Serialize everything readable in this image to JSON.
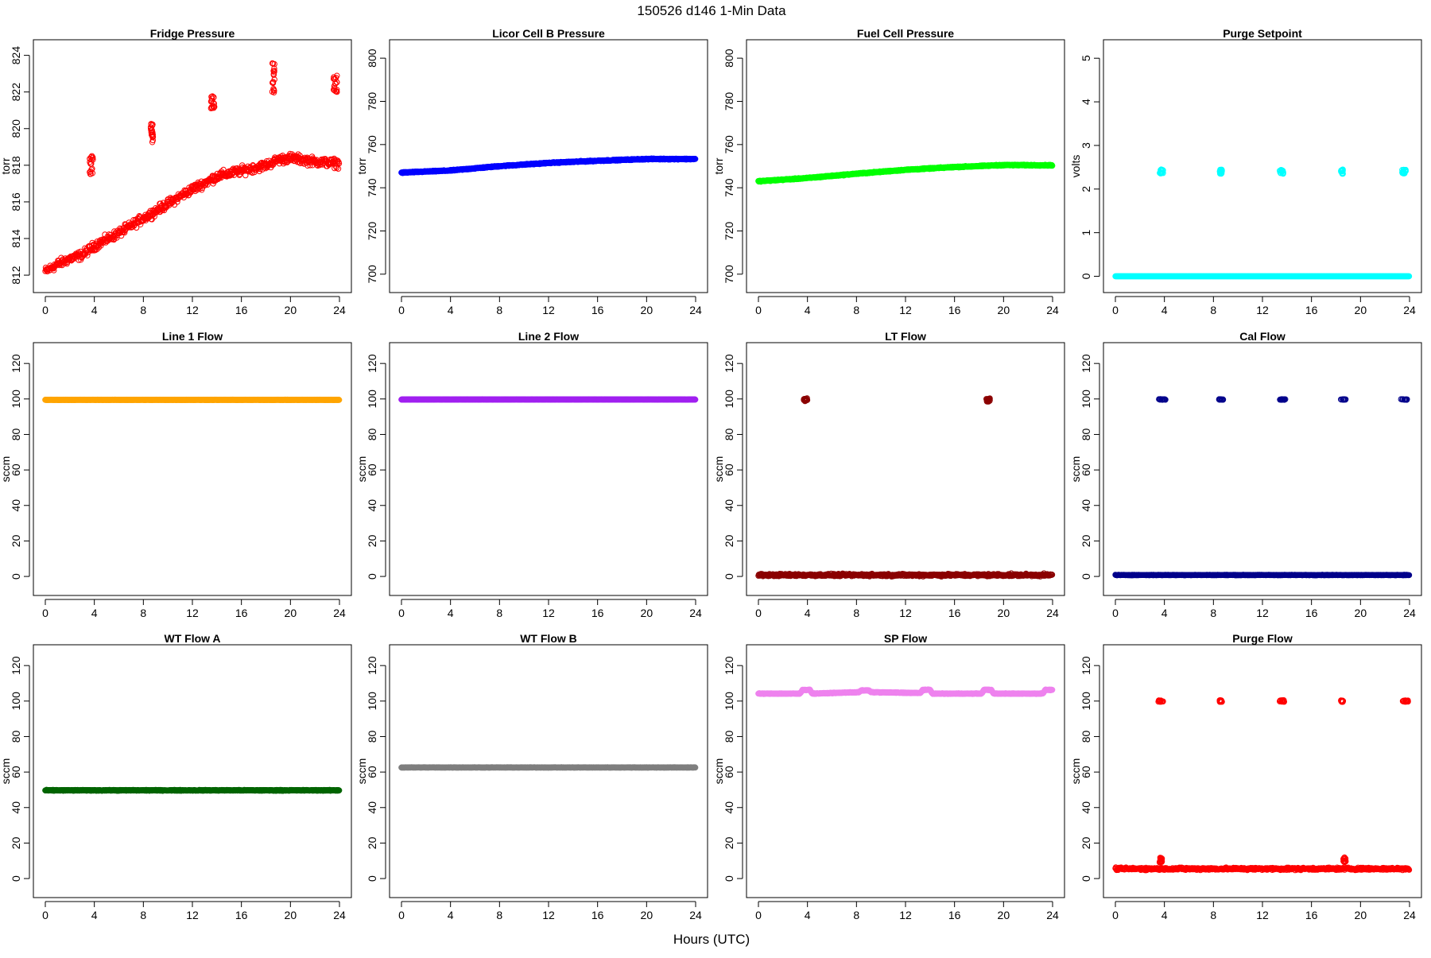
{
  "page": {
    "title": "150526   d146   1-Min Data",
    "xlabel": "Hours (UTC)"
  },
  "chart_data": [
    {
      "type": "scatter",
      "title": "Fridge Pressure",
      "ylabel": "torr",
      "xlim": [
        0,
        24
      ],
      "ylim": [
        811.7,
        824.2
      ],
      "xticks": [
        0,
        4,
        8,
        12,
        16,
        20,
        24
      ],
      "yticks": [
        812,
        814,
        816,
        818,
        820,
        822,
        824
      ],
      "color": "#ff0000",
      "marker": "open-circle",
      "noise": 0.35,
      "series": [
        {
          "x": [
            0,
            1,
            2,
            3,
            4,
            6,
            8,
            10,
            12,
            13.5,
            14,
            16,
            18,
            19,
            20,
            22,
            24
          ],
          "y": [
            812.2,
            812.6,
            812.9,
            813.1,
            813.6,
            814.3,
            815.1,
            815.9,
            816.7,
            817.2,
            817.4,
            817.7,
            818.0,
            818.3,
            818.4,
            818.2,
            818.1
          ]
        }
      ],
      "spikes": [
        {
          "x": [
            3.6,
            3.9
          ],
          "y": [
            817.4,
            818.5
          ]
        },
        {
          "x": [
            8.6,
            8.8
          ],
          "y": [
            819.2,
            820.3
          ]
        },
        {
          "x": [
            13.5,
            13.8
          ],
          "y": [
            821.1,
            821.9
          ]
        },
        {
          "x": [
            18.5,
            18.7
          ],
          "y": [
            821.9,
            823.6
          ]
        },
        {
          "x": [
            23.5,
            23.8
          ],
          "y": [
            822.0,
            822.9
          ]
        }
      ]
    },
    {
      "type": "scatter",
      "title": "Licor Cell B Pressure",
      "ylabel": "torr",
      "xlim": [
        0,
        24
      ],
      "ylim": [
        697,
        803
      ],
      "xticks": [
        0,
        4,
        8,
        12,
        16,
        20,
        24
      ],
      "yticks": [
        700,
        720,
        740,
        760,
        780,
        800
      ],
      "color": "#0000ff",
      "marker": "filled",
      "noise": 0.3,
      "series": [
        {
          "x": [
            0,
            4,
            8,
            12,
            16,
            20,
            24
          ],
          "y": [
            747,
            748,
            750,
            751.5,
            752.5,
            753.3,
            753.3
          ]
        }
      ],
      "spikes": []
    },
    {
      "type": "scatter",
      "title": "Fuel Cell Pressure",
      "ylabel": "torr",
      "xlim": [
        0,
        24
      ],
      "ylim": [
        697,
        803
      ],
      "xticks": [
        0,
        4,
        8,
        12,
        16,
        20,
        24
      ],
      "yticks": [
        700,
        720,
        740,
        760,
        780,
        800
      ],
      "color": "#00ff00",
      "marker": "filled",
      "noise": 0.3,
      "series": [
        {
          "x": [
            0,
            4,
            8,
            12,
            16,
            20,
            24
          ],
          "y": [
            743,
            744.5,
            746.5,
            748.3,
            749.6,
            750.5,
            750.4
          ]
        }
      ],
      "spikes": []
    },
    {
      "type": "scatter",
      "title": "Purge Setpoint",
      "ylabel": "volts",
      "xlim": [
        0,
        24
      ],
      "ylim": [
        -0.1,
        5.15
      ],
      "xticks": [
        0,
        4,
        8,
        12,
        16,
        20,
        24
      ],
      "yticks": [
        0,
        1,
        2,
        3,
        4,
        5
      ],
      "color": "#00ffff",
      "marker": "open-circle",
      "noise": 0.0,
      "series": [
        {
          "x": [
            0,
            24
          ],
          "y": [
            0,
            0
          ]
        }
      ],
      "spikes": [
        {
          "x": [
            3.6,
            3.9
          ],
          "y": [
            2.35,
            2.45
          ]
        },
        {
          "x": [
            8.5,
            8.7
          ],
          "y": [
            2.35,
            2.45
          ]
        },
        {
          "x": [
            13.4,
            13.7
          ],
          "y": [
            2.35,
            2.45
          ]
        },
        {
          "x": [
            18.4,
            18.6
          ],
          "y": [
            2.35,
            2.45
          ]
        },
        {
          "x": [
            23.4,
            23.7
          ],
          "y": [
            2.35,
            2.45
          ]
        }
      ]
    },
    {
      "type": "scatter",
      "title": "Line 1 Flow",
      "ylabel": "sccm",
      "xlim": [
        0,
        24
      ],
      "ylim": [
        -4,
        125
      ],
      "xticks": [
        0,
        4,
        8,
        12,
        16,
        20,
        24
      ],
      "yticks": [
        0,
        20,
        40,
        60,
        80,
        100,
        120
      ],
      "color": "#ffa500",
      "marker": "filled",
      "noise": 0.1,
      "series": [
        {
          "x": [
            0,
            24
          ],
          "y": [
            99.5,
            99.5
          ]
        }
      ],
      "spikes": []
    },
    {
      "type": "scatter",
      "title": "Line 2 Flow",
      "ylabel": "sccm",
      "xlim": [
        0,
        24
      ],
      "ylim": [
        -4,
        125
      ],
      "xticks": [
        0,
        4,
        8,
        12,
        16,
        20,
        24
      ],
      "yticks": [
        0,
        20,
        40,
        60,
        80,
        100,
        120
      ],
      "color": "#a020f0",
      "marker": "filled",
      "noise": 0.1,
      "series": [
        {
          "x": [
            0,
            24
          ],
          "y": [
            99.7,
            99.7
          ]
        }
      ],
      "spikes": []
    },
    {
      "type": "scatter",
      "title": "LT Flow",
      "ylabel": "sccm",
      "xlim": [
        0,
        24
      ],
      "ylim": [
        -4,
        125
      ],
      "xticks": [
        0,
        4,
        8,
        12,
        16,
        20,
        24
      ],
      "yticks": [
        0,
        20,
        40,
        60,
        80,
        100,
        120
      ],
      "color": "#8b0000",
      "marker": "open-circle",
      "noise": 1.0,
      "series": [
        {
          "x": [
            0,
            24
          ],
          "y": [
            0.8,
            0.8
          ]
        }
      ],
      "spikes": [
        {
          "x": [
            3.7,
            4.0
          ],
          "y": [
            98.5,
            100.5
          ]
        },
        {
          "x": [
            18.6,
            18.9
          ],
          "y": [
            98.5,
            100.5
          ]
        }
      ]
    },
    {
      "type": "scatter",
      "title": "Cal Flow",
      "ylabel": "sccm",
      "xlim": [
        0,
        24
      ],
      "ylim": [
        -4,
        125
      ],
      "xticks": [
        0,
        4,
        8,
        12,
        16,
        20,
        24
      ],
      "yticks": [
        0,
        20,
        40,
        60,
        80,
        100,
        120
      ],
      "color": "#00008b",
      "marker": "open-circle",
      "noise": 0.2,
      "series": [
        {
          "x": [
            0,
            24
          ],
          "y": [
            0.8,
            0.8
          ]
        }
      ],
      "spikes": [
        {
          "x": [
            3.5,
            4.1
          ],
          "y": [
            99.5,
            99.9
          ]
        },
        {
          "x": [
            8.4,
            8.8
          ],
          "y": [
            99.5,
            99.9
          ]
        },
        {
          "x": [
            13.4,
            13.9
          ],
          "y": [
            99.5,
            99.9
          ]
        },
        {
          "x": [
            18.4,
            18.8
          ],
          "y": [
            99.5,
            99.9
          ]
        },
        {
          "x": [
            23.3,
            23.9
          ],
          "y": [
            99.5,
            99.9
          ]
        }
      ]
    },
    {
      "type": "scatter",
      "title": "WT Flow A",
      "ylabel": "sccm",
      "xlim": [
        0,
        24
      ],
      "ylim": [
        -4,
        125
      ],
      "xticks": [
        0,
        4,
        8,
        12,
        16,
        20,
        24
      ],
      "yticks": [
        0,
        20,
        40,
        60,
        80,
        100,
        120
      ],
      "color": "#006400",
      "marker": "filled",
      "noise": 0.3,
      "series": [
        {
          "x": [
            0,
            24
          ],
          "y": [
            49.7,
            49.7
          ]
        }
      ],
      "spikes": []
    },
    {
      "type": "scatter",
      "title": "WT Flow B",
      "ylabel": "sccm",
      "xlim": [
        0,
        24
      ],
      "ylim": [
        -4,
        125
      ],
      "xticks": [
        0,
        4,
        8,
        12,
        16,
        20,
        24
      ],
      "yticks": [
        0,
        20,
        40,
        60,
        80,
        100,
        120
      ],
      "color": "#7f7f7f",
      "marker": "filled",
      "noise": 0.1,
      "series": [
        {
          "x": [
            0,
            24
          ],
          "y": [
            62.6,
            62.6
          ]
        }
      ],
      "spikes": []
    },
    {
      "type": "scatter",
      "title": "SP Flow",
      "ylabel": "sccm",
      "xlim": [
        0,
        24
      ],
      "ylim": [
        -4,
        125
      ],
      "xticks": [
        0,
        4,
        8,
        12,
        16,
        20,
        24
      ],
      "yticks": [
        0,
        20,
        40,
        60,
        80,
        100,
        120
      ],
      "color": "#ee82ee",
      "marker": "filled",
      "noise": 0.25,
      "series": [
        {
          "x": [
            0,
            3.4,
            3.6,
            4.2,
            4.4,
            8.2,
            8.4,
            9.0,
            9.2,
            13.2,
            13.4,
            14.0,
            14.2,
            18.2,
            18.4,
            19.0,
            19.2,
            23.2,
            23.4,
            24
          ],
          "y": [
            104.2,
            104.2,
            106.3,
            106.3,
            104.2,
            105.0,
            106.0,
            106.0,
            105.0,
            104.5,
            106.3,
            106.3,
            104.2,
            104.2,
            106.3,
            106.3,
            104.2,
            104.2,
            106.3,
            106.3
          ]
        }
      ],
      "spikes": []
    },
    {
      "type": "scatter",
      "title": "Purge Flow",
      "ylabel": "sccm",
      "xlim": [
        0,
        24
      ],
      "ylim": [
        -4,
        125
      ],
      "xticks": [
        0,
        4,
        8,
        12,
        16,
        20,
        24
      ],
      "yticks": [
        0,
        20,
        40,
        60,
        80,
        100,
        120
      ],
      "color": "#ff0000",
      "marker": "open-circle",
      "noise": 1.0,
      "series": [
        {
          "x": [
            0,
            24
          ],
          "y": [
            5.5,
            5.5
          ]
        }
      ],
      "spikes": [
        {
          "x": [
            3.5,
            3.9
          ],
          "y": [
            99.5,
            100.5
          ]
        },
        {
          "x": [
            8.5,
            8.7
          ],
          "y": [
            99.5,
            100.5
          ]
        },
        {
          "x": [
            13.4,
            13.8
          ],
          "y": [
            99.5,
            100.5
          ]
        },
        {
          "x": [
            18.4,
            18.6
          ],
          "y": [
            99.5,
            100.5
          ]
        },
        {
          "x": [
            23.4,
            23.9
          ],
          "y": [
            99.5,
            100.5
          ]
        },
        {
          "x": [
            3.6,
            3.8
          ],
          "y": [
            9,
            12
          ]
        },
        {
          "x": [
            18.6,
            18.8
          ],
          "y": [
            9,
            12
          ]
        }
      ]
    }
  ]
}
